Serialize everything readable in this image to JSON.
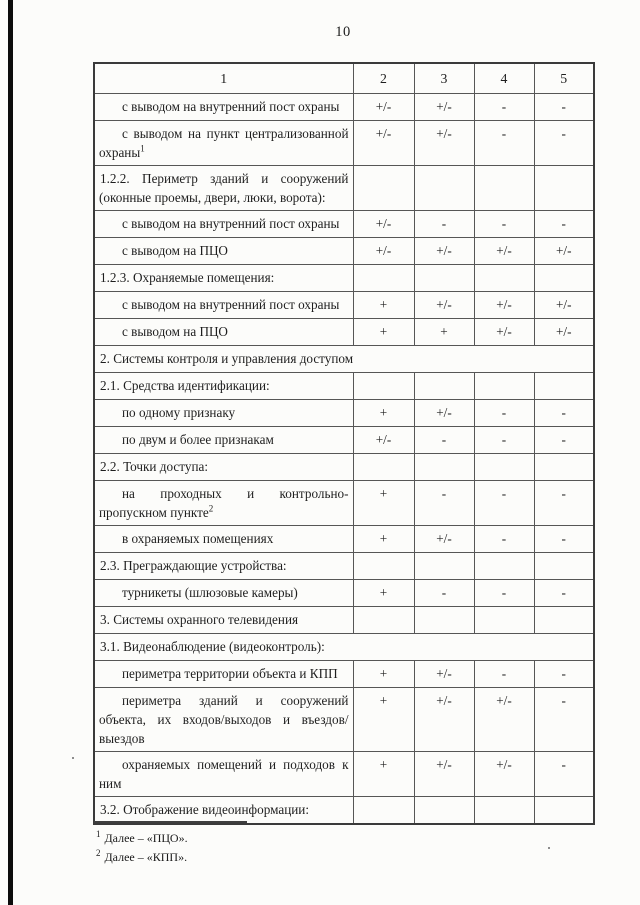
{
  "page": {
    "number": "10"
  },
  "table": {
    "columns": [
      "1",
      "2",
      "3",
      "4",
      "5"
    ],
    "rows": [
      {
        "style": "sub",
        "label": "с выводом на внутренний пост охраны",
        "values": [
          "+/-",
          "+/-",
          "-",
          "-"
        ]
      },
      {
        "style": "sub",
        "label": "с выводом на пункт централизованной охраны",
        "sup": "1",
        "values": [
          "+/-",
          "+/-",
          "-",
          "-"
        ]
      },
      {
        "style": "section",
        "label": "1.2.2. Периметр зданий и сооружений (оконные проемы, двери, люки, ворота):",
        "values": [
          "",
          "",
          "",
          ""
        ]
      },
      {
        "style": "sub",
        "label": "с выводом на внутренний пост охраны",
        "values": [
          "+/-",
          "-",
          "-",
          "-"
        ]
      },
      {
        "style": "sub",
        "label": "с выводом на ПЦО",
        "values": [
          "+/-",
          "+/-",
          "+/-",
          "+/-"
        ]
      },
      {
        "style": "section",
        "label": "1.2.3. Охраняемые помещения:",
        "values": [
          "",
          "",
          "",
          ""
        ]
      },
      {
        "style": "sub",
        "label": "с выводом на внутренний пост охраны",
        "values": [
          "+",
          "+/-",
          "+/-",
          "+/-"
        ]
      },
      {
        "style": "sub",
        "label": "с выводом на ПЦО",
        "values": [
          "+",
          "+",
          "+/-",
          "+/-"
        ]
      },
      {
        "style": "span",
        "label": "2. Системы контроля и управления доступом"
      },
      {
        "style": "section",
        "label": "2.1. Средства идентификации:",
        "values": [
          "",
          "",
          "",
          ""
        ]
      },
      {
        "style": "sub",
        "label": "по одному признаку",
        "values": [
          "+",
          "+/-",
          "-",
          "-"
        ]
      },
      {
        "style": "sub",
        "label": "по двум и более признакам",
        "values": [
          "+/-",
          "-",
          "-",
          "-"
        ]
      },
      {
        "style": "section",
        "label": "2.2. Точки доступа:",
        "values": [
          "",
          "",
          "",
          ""
        ]
      },
      {
        "style": "sub",
        "label": "на проходных и контрольно-пропускном пункте",
        "sup": "2",
        "values": [
          "+",
          "-",
          "-",
          "-"
        ]
      },
      {
        "style": "sub",
        "label": "в охраняемых помещениях",
        "values": [
          "+",
          "+/-",
          "-",
          "-"
        ]
      },
      {
        "style": "section",
        "label": "2.3. Преграждающие устройства:",
        "values": [
          "",
          "",
          "",
          ""
        ]
      },
      {
        "style": "sub",
        "label": "турникеты (шлюзовые камеры)",
        "values": [
          "+",
          "-",
          "-",
          "-"
        ]
      },
      {
        "style": "section",
        "label": "3. Системы охранного телевидения",
        "values": [
          "",
          "",
          "",
          ""
        ]
      },
      {
        "style": "span",
        "label": "3.1. Видеонаблюдение (видеоконтроль):"
      },
      {
        "style": "sub",
        "label": "периметра территории объекта и КПП",
        "values": [
          "+",
          "+/-",
          "-",
          "-"
        ]
      },
      {
        "style": "sub",
        "label": "периметра зданий и сооружений объекта, их входов/выходов и въездов/выездов",
        "values": [
          "+",
          "+/-",
          "+/-",
          "-"
        ]
      },
      {
        "style": "sub",
        "label": "охраняемых помещений и подходов к ним",
        "values": [
          "+",
          "+/-",
          "+/-",
          "-"
        ]
      },
      {
        "style": "section",
        "label": "3.2. Отображение видеоинформации:",
        "values": [
          "",
          "",
          "",
          ""
        ]
      }
    ]
  },
  "footnotes": [
    {
      "marker": "1",
      "text": "Далее – «ПЦО»."
    },
    {
      "marker": "2",
      "text": "Далее – «КПП»."
    }
  ]
}
